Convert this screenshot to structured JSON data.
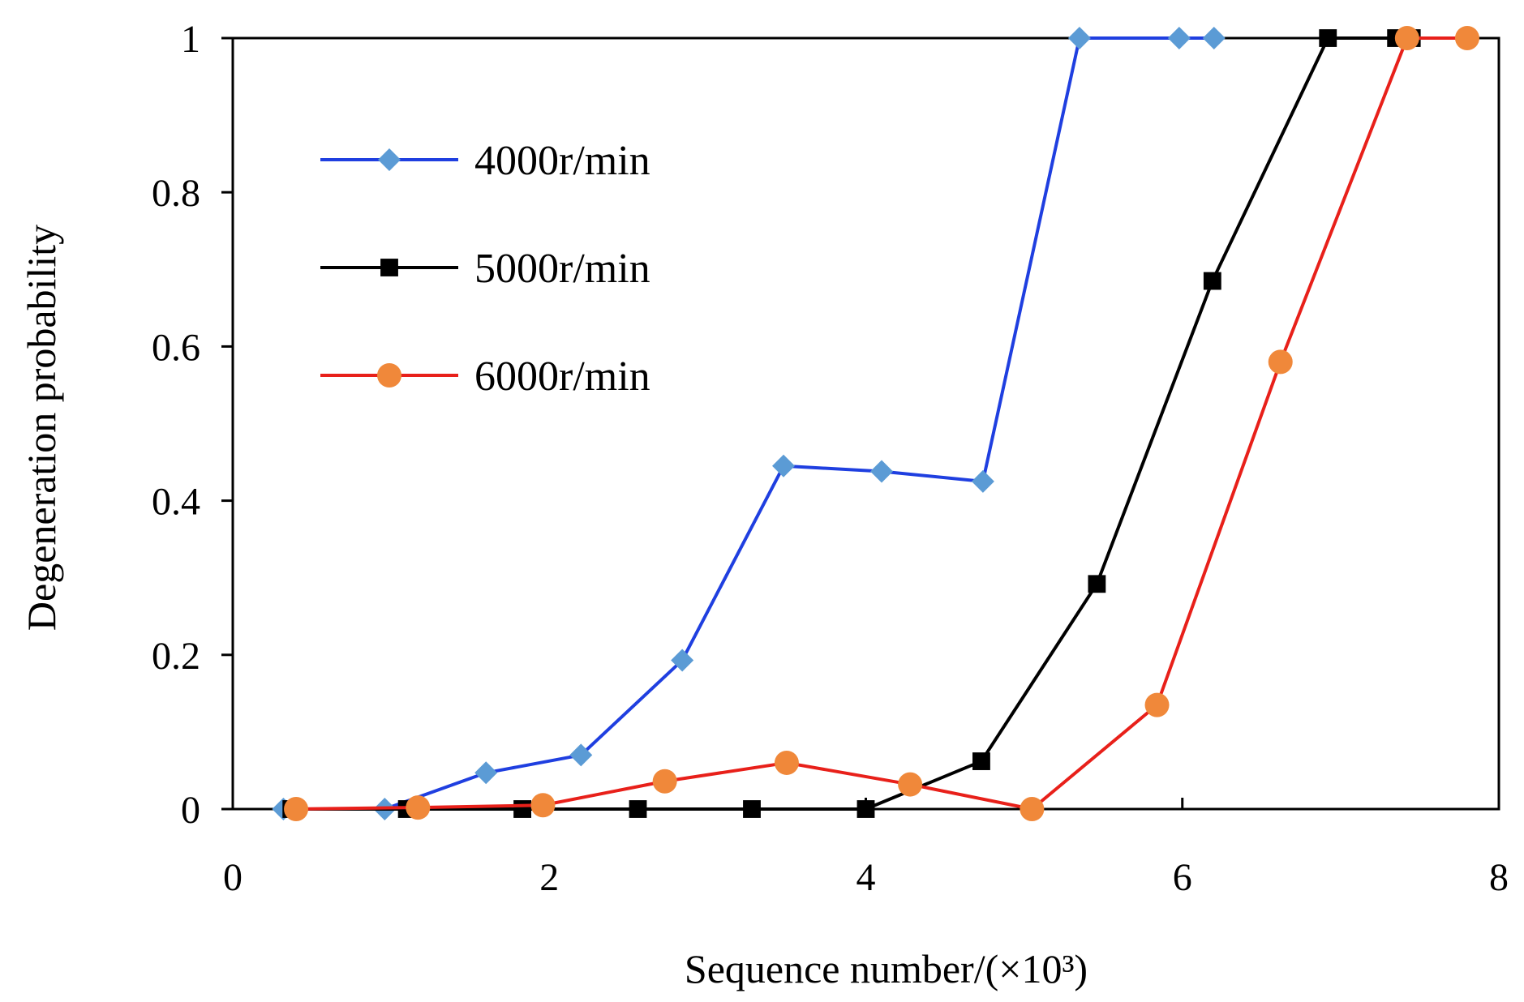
{
  "chart_data": {
    "type": "line",
    "title": "",
    "xlabel": "Sequence number/(×10³)",
    "ylabel": "Degeneration probability",
    "xlim": [
      0,
      8
    ],
    "ylim": [
      0,
      1
    ],
    "x_ticks": [
      0,
      2,
      4,
      6,
      8
    ],
    "x_tick_labels": [
      "0",
      "2",
      "4",
      "6",
      "8"
    ],
    "y_ticks": [
      0,
      0.2,
      0.4,
      0.6,
      0.8,
      1
    ],
    "y_tick_labels": [
      "0",
      "0.2",
      "0.4",
      "0.6",
      "0.8",
      "1"
    ],
    "grid": false,
    "legend_position": "upper-left",
    "series": [
      {
        "name": "4000r/min",
        "color": "#1f3fe0",
        "marker": "diamond",
        "marker_color": "#5b9bd5",
        "x": [
          0.32,
          0.96,
          1.6,
          2.2,
          2.84,
          3.48,
          4.1,
          4.74,
          5.35,
          5.98,
          6.2
        ],
        "y": [
          0,
          0,
          0.047,
          0.07,
          0.193,
          0.445,
          0.438,
          0.425,
          1.0,
          1.0,
          1.0
        ]
      },
      {
        "name": "5000r/min",
        "color": "#000000",
        "marker": "square",
        "marker_color": "#000000",
        "x": [
          0.37,
          1.1,
          1.83,
          2.56,
          3.28,
          4.0,
          4.73,
          5.46,
          6.19,
          6.92,
          7.35,
          7.45
        ],
        "y": [
          0,
          0,
          0,
          0,
          0,
          0,
          0.062,
          0.292,
          0.685,
          1.0,
          1.0,
          1.0
        ]
      },
      {
        "name": "6000r/min",
        "color": "#e8201a",
        "marker": "circle",
        "marker_color": "#f0883a",
        "x": [
          0.4,
          1.17,
          1.96,
          2.73,
          3.5,
          4.28,
          5.05,
          5.84,
          6.62,
          7.42,
          7.8
        ],
        "y": [
          0,
          0.002,
          0.005,
          0.036,
          0.06,
          0.032,
          0,
          0.135,
          0.58,
          1.0,
          1.0
        ]
      }
    ]
  }
}
